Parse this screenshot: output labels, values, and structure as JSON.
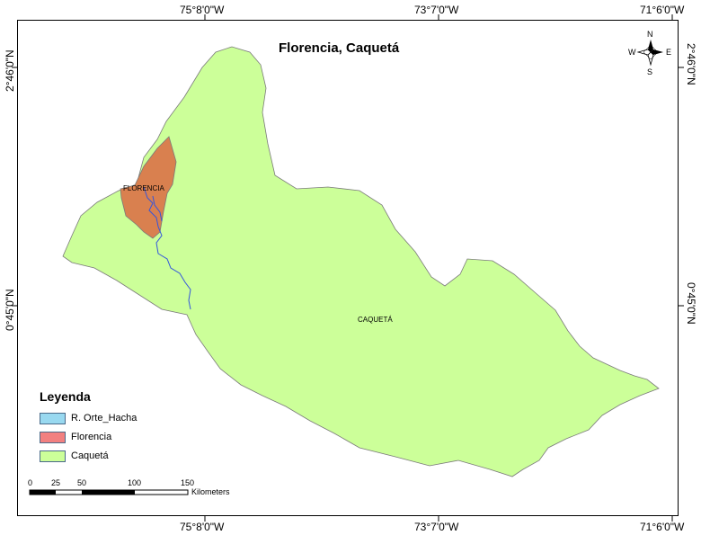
{
  "map": {
    "title": "Florencia, Caquetá",
    "coords": {
      "top": [
        "75°8'0\"W",
        "73°7'0\"W",
        "71°6'0\"W"
      ],
      "bottom": [
        "75°8'0\"W",
        "73°7'0\"W",
        "71°6'0\"W"
      ],
      "left": [
        "2°46'0\"N",
        "0°45'0\"N"
      ],
      "right": [
        "2°46'0\"N",
        "0°45'0\"N"
      ]
    },
    "region_labels": {
      "florencia": "FLORENCIA",
      "caqueta": "CAQUETÁ"
    },
    "colors": {
      "caqueta_fill": "#ccff99",
      "florencia_fill": "#d9804f",
      "river": "#3355dd",
      "outline": "#7a7a7a"
    }
  },
  "compass": {
    "n": "N",
    "s": "S",
    "e": "E",
    "w": "W"
  },
  "legend": {
    "title": "Leyenda",
    "items": [
      {
        "label": "R. Orte_Hacha",
        "color": "#99d9f0"
      },
      {
        "label": "Florencia",
        "color": "#f28080"
      },
      {
        "label": "Caquetá",
        "color": "#ccff99"
      }
    ]
  },
  "scale_bar": {
    "ticks": [
      "0",
      "25",
      "50",
      "100",
      "150"
    ],
    "units": "Kilometers"
  }
}
